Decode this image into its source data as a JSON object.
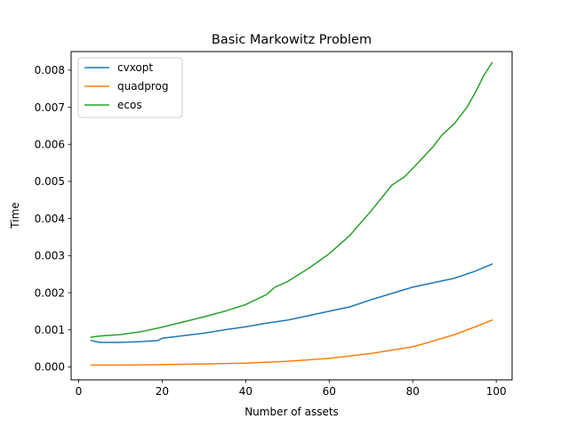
{
  "chart_data": {
    "type": "line",
    "title": "Basic Markowitz Problem",
    "xlabel": "Number of assets",
    "ylabel": "Time",
    "xlim": [
      -1.8,
      103.8
    ],
    "ylim": [
      -0.00035,
      0.0085
    ],
    "xticks": [
      0,
      20,
      40,
      60,
      80,
      100
    ],
    "xtick_labels": [
      "0",
      "20",
      "40",
      "60",
      "80",
      "100"
    ],
    "yticks": [
      0.0,
      0.001,
      0.002,
      0.003,
      0.004,
      0.005,
      0.006,
      0.007,
      0.008
    ],
    "ytick_labels": [
      "0.000",
      "0.001",
      "0.002",
      "0.003",
      "0.004",
      "0.005",
      "0.006",
      "0.007",
      "0.008"
    ],
    "grid": false,
    "legend_position": "upper-left",
    "series": [
      {
        "name": "cvxopt",
        "color": "#1f77b4",
        "x": [
          3,
          5,
          8,
          10,
          15,
          19,
          20,
          25,
          30,
          35,
          40,
          45,
          50,
          55,
          60,
          65,
          70,
          75,
          80,
          85,
          90,
          95,
          99
        ],
        "y": [
          0.00071,
          0.00066,
          0.00066,
          0.00066,
          0.00068,
          0.00071,
          0.00077,
          0.00084,
          0.00091,
          0.001,
          0.00108,
          0.00118,
          0.00126,
          0.00138,
          0.0015,
          0.00162,
          0.00181,
          0.00198,
          0.00215,
          0.00227,
          0.00239,
          0.00258,
          0.00277
        ]
      },
      {
        "name": "quadprog",
        "color": "#ff7f0e",
        "x": [
          3,
          10,
          20,
          30,
          40,
          50,
          60,
          70,
          80,
          85,
          90,
          95,
          99
        ],
        "y": [
          5e-05,
          5e-05,
          6e-05,
          8e-05,
          0.0001,
          0.00015,
          0.00023,
          0.00036,
          0.00054,
          0.0007,
          0.00087,
          0.00108,
          0.00126
        ]
      },
      {
        "name": "ecos",
        "color": "#2ca02c",
        "x": [
          3,
          5,
          10,
          15,
          20,
          25,
          30,
          35,
          40,
          45,
          47,
          50,
          55,
          60,
          65,
          70,
          75,
          78,
          80,
          85,
          87,
          90,
          93,
          95,
          97,
          99
        ],
        "y": [
          0.0008,
          0.00083,
          0.00087,
          0.00095,
          0.00107,
          0.00121,
          0.00135,
          0.0015,
          0.00168,
          0.00195,
          0.00215,
          0.0023,
          0.00265,
          0.00305,
          0.00355,
          0.0042,
          0.0049,
          0.00512,
          0.00535,
          0.00595,
          0.00625,
          0.00656,
          0.007,
          0.0074,
          0.00785,
          0.0082
        ]
      }
    ]
  }
}
